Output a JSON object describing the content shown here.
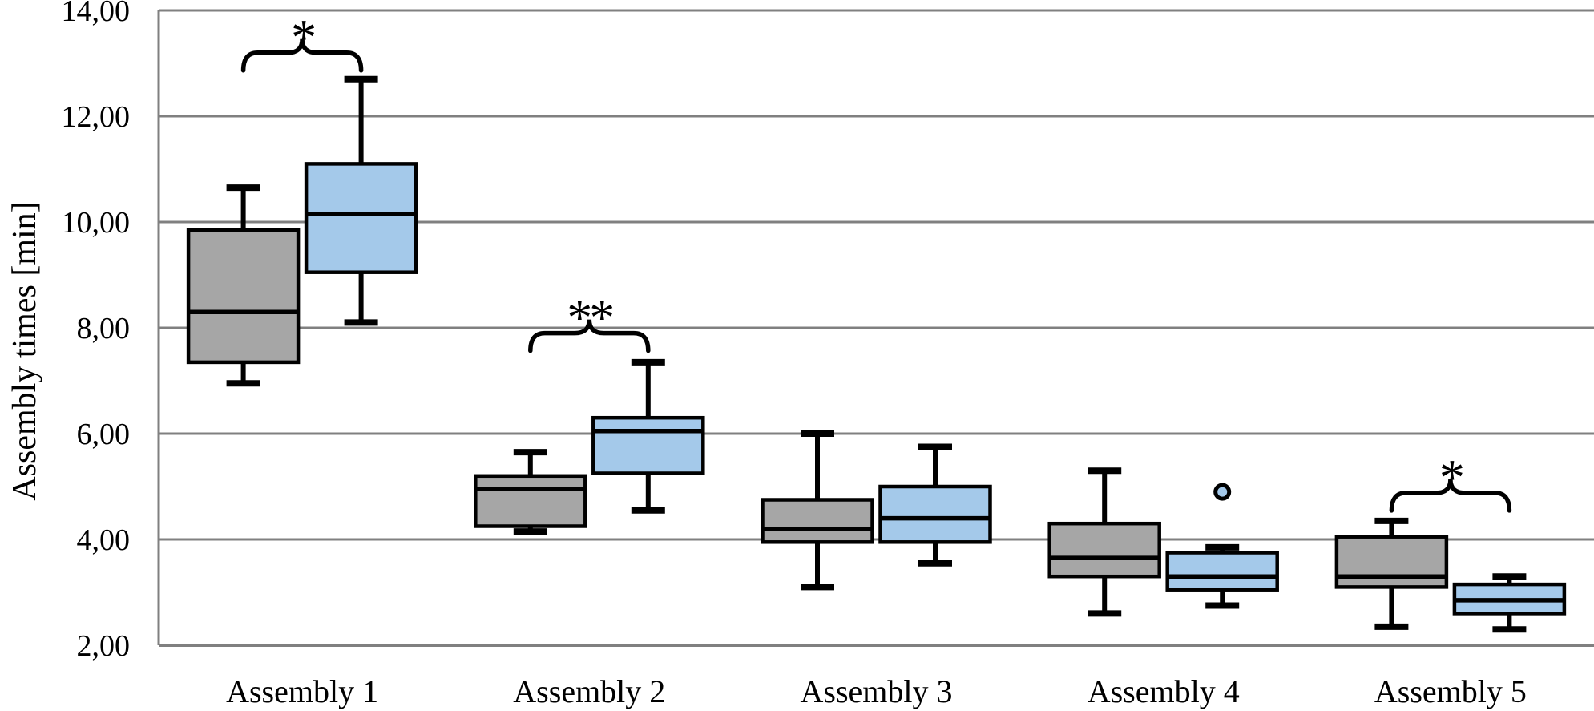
{
  "figure": {
    "background": "#ffffff"
  },
  "chart_data": {
    "type": "boxplot",
    "title": "",
    "xlabel": "",
    "ylabel": "Assembly times [min]",
    "ylim": [
      2,
      14
    ],
    "grid": "horizontal",
    "legend": "none",
    "decimal_style": "comma",
    "y_ticks": [
      {
        "label": "2,00",
        "value": 2
      },
      {
        "label": "4,00",
        "value": 4
      },
      {
        "label": "6,00",
        "value": 6
      },
      {
        "label": "8,00",
        "value": 8
      },
      {
        "label": "10,00",
        "value": 10
      },
      {
        "label": "12,00",
        "value": 12
      },
      {
        "label": "14,00",
        "value": 14
      }
    ],
    "categories": [
      "Assembly 1",
      "Assembly 2",
      "Assembly 3",
      "Assembly 4",
      "Assembly 5"
    ],
    "series": [
      {
        "name": "gray",
        "fill_color": "#A6A6A6",
        "stroke_color": "#000000",
        "boxes": [
          {
            "whisker_low": 6.95,
            "q1": 7.35,
            "median": 8.3,
            "q3": 9.85,
            "whisker_high": 10.65,
            "outliers": []
          },
          {
            "whisker_low": 4.15,
            "q1": 4.25,
            "median": 4.95,
            "q3": 5.2,
            "whisker_high": 5.65,
            "outliers": []
          },
          {
            "whisker_low": 3.1,
            "q1": 3.95,
            "median": 4.2,
            "q3": 4.75,
            "whisker_high": 6.0,
            "outliers": []
          },
          {
            "whisker_low": 2.6,
            "q1": 3.3,
            "median": 3.65,
            "q3": 4.3,
            "whisker_high": 5.3,
            "outliers": []
          },
          {
            "whisker_low": 2.35,
            "q1": 3.1,
            "median": 3.3,
            "q3": 4.05,
            "whisker_high": 4.35,
            "outliers": []
          }
        ]
      },
      {
        "name": "blue",
        "fill_color": "#A4C9EA",
        "stroke_color": "#000000",
        "boxes": [
          {
            "whisker_low": 8.1,
            "q1": 9.05,
            "median": 10.15,
            "q3": 11.1,
            "whisker_high": 12.7,
            "outliers": []
          },
          {
            "whisker_low": 4.55,
            "q1": 5.25,
            "median": 6.05,
            "q3": 6.3,
            "whisker_high": 7.35,
            "outliers": []
          },
          {
            "whisker_low": 3.55,
            "q1": 3.95,
            "median": 4.4,
            "q3": 5.0,
            "whisker_high": 5.75,
            "outliers": []
          },
          {
            "whisker_low": 2.75,
            "q1": 3.05,
            "median": 3.3,
            "q3": 3.75,
            "whisker_high": 3.85,
            "outliers": [
              4.9
            ]
          },
          {
            "whisker_low": 2.3,
            "q1": 2.6,
            "median": 2.85,
            "q3": 3.15,
            "whisker_high": 3.3,
            "outliers": []
          }
        ]
      }
    ],
    "significance_annotations": [
      {
        "category_index": 0,
        "category": "Assembly 1",
        "label": "*",
        "brace_y": 13.2
      },
      {
        "category_index": 1,
        "category": "Assembly 2",
        "label": "**",
        "brace_y": 7.9
      },
      {
        "category_index": 4,
        "category": "Assembly 5",
        "label": "*",
        "brace_y": 4.88
      }
    ],
    "colors": {
      "gridline": "#808080",
      "axis": "#808080",
      "box_border": "#000000",
      "text": "#000000",
      "gray_fill": "#A6A6A6",
      "blue_fill": "#A4C9EA"
    }
  }
}
